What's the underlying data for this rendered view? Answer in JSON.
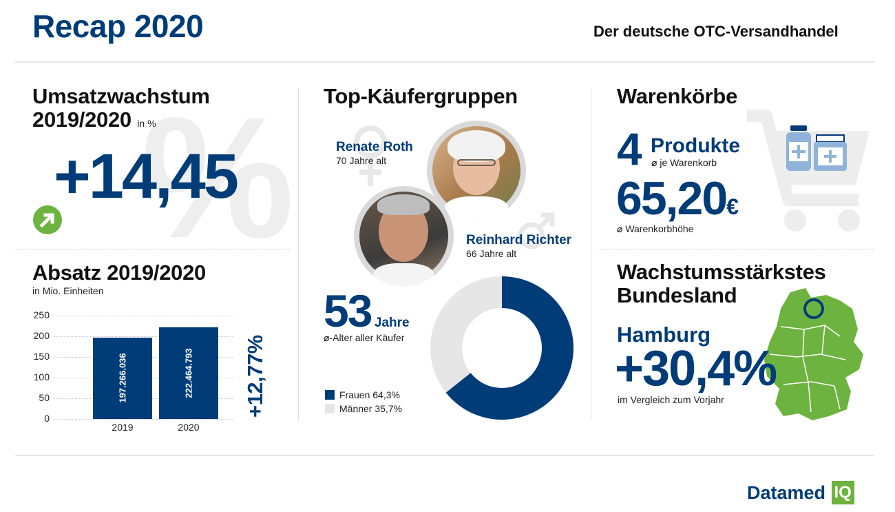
{
  "header": {
    "title": "Recap 2020",
    "subtitle": "Der deutsche OTC-Versandhandel"
  },
  "umsatz": {
    "heading_line1": "Umsatzwachstum",
    "heading_line2": "2019/2020",
    "unit": "in %",
    "value": "+14,45",
    "bg_symbol": "%",
    "icon": "arrow-up-right-icon"
  },
  "absatz": {
    "heading": "Absatz 2019/2020",
    "unit": "in Mio. Einheiten",
    "growth": "+12,77%"
  },
  "chart_data": {
    "type": "bar",
    "categories": [
      "2019",
      "2020"
    ],
    "values": [
      197.266036,
      222.464793
    ],
    "data_labels": [
      "197.266.036",
      "222.464.793"
    ],
    "yticks": [
      "250",
      "200",
      "150",
      "100",
      "50",
      "0"
    ],
    "ylim": [
      0,
      250
    ],
    "colors": {
      "bar": "#003c78"
    },
    "title": "Absatz 2019/2020",
    "ylabel": "in Mio. Einheiten"
  },
  "kaeufer": {
    "heading": "Top-Käufergruppen",
    "female": {
      "name": "Renate Roth",
      "age": "70 Jahre alt",
      "icon": "female-symbol-icon"
    },
    "male": {
      "name": "Reinhard Richter",
      "age": "66 Jahre alt",
      "icon": "male-symbol-icon"
    },
    "avg_age_value": "53",
    "avg_age_unit": "Jahre",
    "avg_age_label": "-Alter aller Käufer",
    "avg_symbol": "⌀",
    "donut": {
      "type": "pie",
      "series": [
        {
          "name": "Frauen",
          "label": "Frauen 64,3%",
          "value": 64.3,
          "color": "#003c78"
        },
        {
          "name": "Männer",
          "label": "Männer 35,7%",
          "value": 35.7,
          "color": "#e6e6e6"
        }
      ]
    }
  },
  "warenkorb": {
    "heading": "Warenkörbe",
    "products_value": "4",
    "products_label": "Produkte",
    "products_sub": "je Warenkorb",
    "basket_value": "65,20",
    "basket_currency": "€",
    "basket_sub": "Warenkorbhöhe",
    "avg_symbol": "⌀",
    "icon": "shopping-cart-icon"
  },
  "bundesland": {
    "heading_line1": "Wachstumsstärkstes",
    "heading_line2": "Bundesland",
    "state": "Hamburg",
    "value": "+30,4%",
    "sub": "im Vergleich zum Vorjahr",
    "icon": "germany-map-icon"
  },
  "footer": {
    "brand": "Datamed",
    "brand_box": "IQ"
  },
  "colors": {
    "navy": "#003c78",
    "green": "#6db33f",
    "lightgray": "#e6e6e6"
  }
}
